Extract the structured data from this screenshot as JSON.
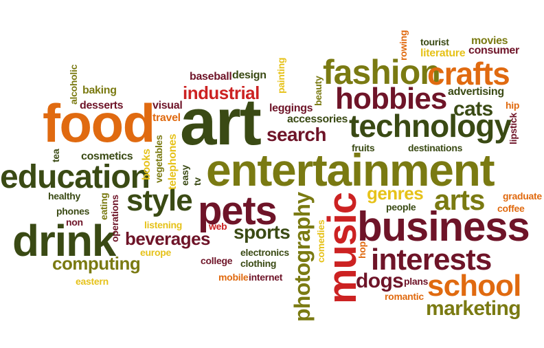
{
  "palette": {
    "dark_green": "#3a4a14",
    "olive": "#7a7a12",
    "maroon": "#6e1428",
    "orange": "#e06a10",
    "red": "#cc2222",
    "yellow": "#e6c21a",
    "background": "#ffffff"
  },
  "words": [
    {
      "text": "entertainment",
      "color": "#7a7a12",
      "orientation": "horizontal"
    },
    {
      "text": "art",
      "color": "#3a4a14",
      "orientation": "horizontal"
    },
    {
      "text": "food",
      "color": "#e06a10",
      "orientation": "horizontal"
    },
    {
      "text": "business",
      "color": "#6e1428",
      "orientation": "horizontal"
    },
    {
      "text": "drink",
      "color": "#3a4a14",
      "orientation": "horizontal"
    },
    {
      "text": "fashion",
      "color": "#7a7a12",
      "orientation": "horizontal"
    },
    {
      "text": "pets",
      "color": "#6e1428",
      "orientation": "horizontal"
    },
    {
      "text": "music",
      "color": "#cc2222",
      "orientation": "vertical"
    },
    {
      "text": "technology",
      "color": "#3a4a14",
      "orientation": "horizontal"
    },
    {
      "text": "education",
      "color": "#3a4a14",
      "orientation": "horizontal"
    },
    {
      "text": "hobbies",
      "color": "#6e1428",
      "orientation": "horizontal"
    },
    {
      "text": "crafts",
      "color": "#e06a10",
      "orientation": "horizontal"
    },
    {
      "text": "interests",
      "color": "#6e1428",
      "orientation": "horizontal"
    },
    {
      "text": "school",
      "color": "#e06a10",
      "orientation": "horizontal"
    },
    {
      "text": "style",
      "color": "#3a4a14",
      "orientation": "horizontal"
    },
    {
      "text": "arts",
      "color": "#7a7a12",
      "orientation": "horizontal"
    },
    {
      "text": "photography",
      "color": "#7a7a12",
      "orientation": "vertical"
    },
    {
      "text": "marketing",
      "color": "#7a7a12",
      "orientation": "horizontal"
    },
    {
      "text": "beverages",
      "color": "#6e1428",
      "orientation": "horizontal"
    },
    {
      "text": "computing",
      "color": "#7a7a12",
      "orientation": "horizontal"
    },
    {
      "text": "search",
      "color": "#6e1428",
      "orientation": "horizontal"
    },
    {
      "text": "sports",
      "color": "#3a4a14",
      "orientation": "horizontal"
    },
    {
      "text": "industrial",
      "color": "#cc2222",
      "orientation": "horizontal"
    },
    {
      "text": "dogs",
      "color": "#6e1428",
      "orientation": "horizontal"
    },
    {
      "text": "cats",
      "color": "#3a4a14",
      "orientation": "horizontal"
    },
    {
      "text": "genres",
      "color": "#e6c21a",
      "orientation": "horizontal"
    },
    {
      "text": "rowing",
      "color": "#e06a10",
      "orientation": "vertical"
    },
    {
      "text": "tourist",
      "color": "#3a4a14",
      "orientation": "horizontal"
    },
    {
      "text": "movies",
      "color": "#7a7a12",
      "orientation": "horizontal"
    },
    {
      "text": "literature",
      "color": "#e6c21a",
      "orientation": "horizontal"
    },
    {
      "text": "consumer",
      "color": "#6e1428",
      "orientation": "horizontal"
    },
    {
      "text": "baseball",
      "color": "#6e1428",
      "orientation": "horizontal"
    },
    {
      "text": "design",
      "color": "#3a4a14",
      "orientation": "horizontal"
    },
    {
      "text": "painting",
      "color": "#e6c21a",
      "orientation": "vertical"
    },
    {
      "text": "alcoholic",
      "color": "#7a7a12",
      "orientation": "vertical"
    },
    {
      "text": "baking",
      "color": "#7a7a12",
      "orientation": "horizontal"
    },
    {
      "text": "desserts",
      "color": "#6e1428",
      "orientation": "horizontal"
    },
    {
      "text": "beauty",
      "color": "#7a7a12",
      "orientation": "vertical"
    },
    {
      "text": "advertising",
      "color": "#3a4a14",
      "orientation": "horizontal"
    },
    {
      "text": "hip",
      "color": "#e06a10",
      "orientation": "horizontal"
    },
    {
      "text": "lipstick",
      "color": "#6e1428",
      "orientation": "vertical"
    },
    {
      "text": "visual",
      "color": "#6e1428",
      "orientation": "horizontal"
    },
    {
      "text": "leggings",
      "color": "#6e1428",
      "orientation": "horizontal"
    },
    {
      "text": "accessories",
      "color": "#3a4a14",
      "orientation": "horizontal"
    },
    {
      "text": "travel",
      "color": "#e06a10",
      "orientation": "horizontal"
    },
    {
      "text": "fruits",
      "color": "#3a4a14",
      "orientation": "horizontal"
    },
    {
      "text": "destinations",
      "color": "#3a4a14",
      "orientation": "horizontal"
    },
    {
      "text": "cosmetics",
      "color": "#3a4a14",
      "orientation": "horizontal"
    },
    {
      "text": "tea",
      "color": "#3a4a14",
      "orientation": "vertical"
    },
    {
      "text": "vegetables",
      "color": "#7a7a12",
      "orientation": "vertical"
    },
    {
      "text": "telephones",
      "color": "#e6c21a",
      "orientation": "vertical"
    },
    {
      "text": "books",
      "color": "#e6c21a",
      "orientation": "vertical"
    },
    {
      "text": "easy",
      "color": "#3a4a14",
      "orientation": "vertical"
    },
    {
      "text": "tv",
      "color": "#3a4a14",
      "orientation": "vertical"
    },
    {
      "text": "graduate",
      "color": "#e06a10",
      "orientation": "horizontal"
    },
    {
      "text": "coffee",
      "color": "#e06a10",
      "orientation": "horizontal"
    },
    {
      "text": "people",
      "color": "#3a4a14",
      "orientation": "horizontal"
    },
    {
      "text": "healthy",
      "color": "#3a4a14",
      "orientation": "horizontal"
    },
    {
      "text": "eating",
      "color": "#7a7a12",
      "orientation": "vertical"
    },
    {
      "text": "operations",
      "color": "#6e1428",
      "orientation": "vertical"
    },
    {
      "text": "phones",
      "color": "#3a4a14",
      "orientation": "horizontal"
    },
    {
      "text": "non",
      "color": "#6e1428",
      "orientation": "horizontal"
    },
    {
      "text": "listening",
      "color": "#e6c21a",
      "orientation": "horizontal"
    },
    {
      "text": "web",
      "color": "#cc2222",
      "orientation": "horizontal"
    },
    {
      "text": "comedies",
      "color": "#e6c21a",
      "orientation": "vertical"
    },
    {
      "text": "hop",
      "color": "#e06a10",
      "orientation": "vertical"
    },
    {
      "text": "electronics",
      "color": "#3a4a14",
      "orientation": "horizontal"
    },
    {
      "text": "clothing",
      "color": "#3a4a14",
      "orientation": "horizontal"
    },
    {
      "text": "college",
      "color": "#6e1428",
      "orientation": "horizontal"
    },
    {
      "text": "europe",
      "color": "#e6c21a",
      "orientation": "horizontal"
    },
    {
      "text": "mobile",
      "color": "#e06a10",
      "orientation": "horizontal"
    },
    {
      "text": "internet",
      "color": "#6e1428",
      "orientation": "horizontal"
    },
    {
      "text": "eastern",
      "color": "#e6c21a",
      "orientation": "horizontal"
    },
    {
      "text": "plans",
      "color": "#6e1428",
      "orientation": "horizontal"
    },
    {
      "text": "romantic",
      "color": "#e06a10",
      "orientation": "horizontal"
    }
  ]
}
